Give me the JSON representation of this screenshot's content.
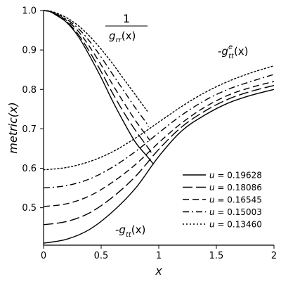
{
  "chart_data": {
    "type": "line",
    "xlabel": "x",
    "ylabel": "metric(x)",
    "xlim": [
      0,
      2
    ],
    "ylim": [
      0.405,
      1.0
    ],
    "xticks": [
      "0",
      "0.5",
      "1",
      "1.5",
      "2"
    ],
    "yticks": [
      "0.5",
      "0.6",
      "0.7",
      "0.8",
      "0.9",
      "1.0"
    ],
    "grid": false,
    "legend_position": "bottom-right",
    "annotations": {
      "grr_fraction_numerator": "1",
      "grr_fraction_denominator": "g_rr(x)",
      "gtt_label": "-g_tt(x)",
      "gtt_e_label": "-g^e_tt(x)"
    },
    "series": [
      {
        "name": "u = 0.19628",
        "dash": "solid",
        "lower_gtt": {
          "x": [
            0,
            0.2,
            0.4,
            0.6,
            0.8,
            1.0,
            1.2,
            1.4,
            1.6,
            1.8,
            2.0
          ],
          "y": [
            0.41,
            0.42,
            0.445,
            0.49,
            0.55,
            0.63,
            0.695,
            0.735,
            0.765,
            0.785,
            0.8
          ]
        },
        "upper_inv_grr": {
          "x": [
            0,
            0.05,
            0.1,
            0.2,
            0.3,
            0.4,
            0.5,
            0.6,
            0.7,
            0.8,
            0.9,
            0.955
          ],
          "y": [
            1.0,
            0.998,
            0.99,
            0.97,
            0.935,
            0.885,
            0.83,
            0.77,
            0.715,
            0.665,
            0.63,
            0.61
          ]
        }
      },
      {
        "name": "u = 0.18086",
        "dash": "long",
        "lower_gtt": {
          "x": [
            0,
            0.2,
            0.4,
            0.6,
            0.8,
            1.0,
            1.2,
            1.4,
            1.6,
            1.8,
            2.0
          ],
          "y": [
            0.457,
            0.465,
            0.487,
            0.527,
            0.58,
            0.648,
            0.705,
            0.745,
            0.775,
            0.795,
            0.81
          ]
        },
        "upper_inv_grr": {
          "x": [
            0,
            0.05,
            0.1,
            0.2,
            0.3,
            0.4,
            0.5,
            0.6,
            0.7,
            0.8,
            0.9,
            0.935
          ],
          "y": [
            1.0,
            0.998,
            0.991,
            0.972,
            0.94,
            0.895,
            0.845,
            0.79,
            0.74,
            0.695,
            0.655,
            0.64
          ]
        }
      },
      {
        "name": "u = 0.16545",
        "dash": "medium",
        "lower_gtt": {
          "x": [
            0,
            0.2,
            0.4,
            0.6,
            0.8,
            1.0,
            1.2,
            1.4,
            1.6,
            1.8,
            2.0
          ],
          "y": [
            0.503,
            0.51,
            0.53,
            0.565,
            0.61,
            0.665,
            0.715,
            0.755,
            0.785,
            0.805,
            0.82
          ]
        },
        "upper_inv_grr": {
          "x": [
            0,
            0.05,
            0.1,
            0.2,
            0.3,
            0.4,
            0.5,
            0.6,
            0.7,
            0.8,
            0.9,
            0.925
          ],
          "y": [
            1.0,
            0.998,
            0.992,
            0.975,
            0.948,
            0.908,
            0.862,
            0.812,
            0.765,
            0.72,
            0.68,
            0.67
          ]
        }
      },
      {
        "name": "u = 0.15003",
        "dash": "dashdot",
        "lower_gtt": {
          "x": [
            0,
            0.2,
            0.4,
            0.6,
            0.8,
            1.0,
            1.2,
            1.4,
            1.6,
            1.8,
            2.0
          ],
          "y": [
            0.55,
            0.556,
            0.573,
            0.603,
            0.643,
            0.69,
            0.735,
            0.772,
            0.8,
            0.82,
            0.838
          ]
        },
        "upper_inv_grr": {
          "x": [
            0,
            0.05,
            0.1,
            0.2,
            0.3,
            0.4,
            0.5,
            0.6,
            0.7,
            0.8,
            0.9,
            0.91
          ],
          "y": [
            1.0,
            0.998,
            0.993,
            0.978,
            0.955,
            0.922,
            0.882,
            0.838,
            0.795,
            0.752,
            0.712,
            0.705
          ]
        }
      },
      {
        "name": "u = 0.13460",
        "dash": "dotted",
        "lower_gtt": {
          "x": [
            0,
            0.2,
            0.4,
            0.6,
            0.8,
            1.0,
            1.2,
            1.4,
            1.6,
            1.8,
            2.0
          ],
          "y": [
            0.596,
            0.602,
            0.617,
            0.642,
            0.677,
            0.717,
            0.757,
            0.792,
            0.82,
            0.842,
            0.86
          ]
        },
        "upper_inv_grr": {
          "x": [
            0,
            0.05,
            0.1,
            0.2,
            0.3,
            0.4,
            0.5,
            0.6,
            0.7,
            0.8,
            0.9
          ],
          "y": [
            1.0,
            0.999,
            0.995,
            0.982,
            0.962,
            0.935,
            0.902,
            0.865,
            0.825,
            0.785,
            0.745
          ]
        }
      }
    ]
  }
}
